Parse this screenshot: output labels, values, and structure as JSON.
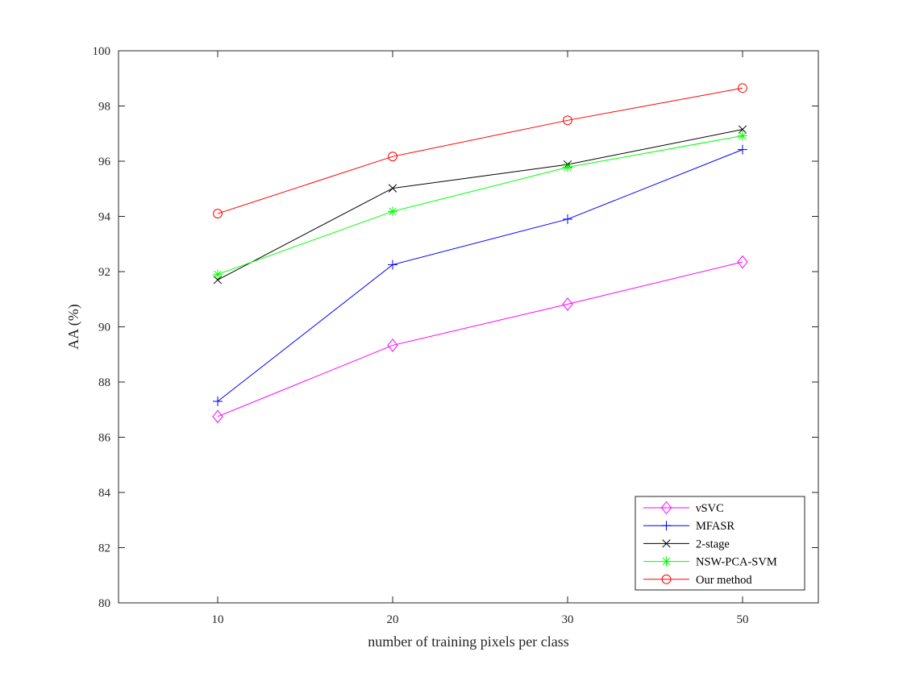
{
  "chart_data": {
    "type": "line",
    "categories": [
      "10",
      "20",
      "30",
      "50"
    ],
    "xlabel": "number of training pixels per class",
    "ylabel": "AA (%)",
    "ylim": [
      80,
      100
    ],
    "yticks": [
      80,
      82,
      84,
      86,
      88,
      90,
      92,
      94,
      96,
      98,
      100
    ],
    "grid": false,
    "legend_position": "bottom-right",
    "series": [
      {
        "name": "νSVC",
        "color": "#ff00ff",
        "marker": "diamond",
        "values": [
          86.75,
          89.33,
          90.82,
          92.35
        ]
      },
      {
        "name": "MFASR",
        "color": "#0000ff",
        "marker": "plus",
        "values": [
          87.3,
          92.25,
          93.9,
          96.42
        ]
      },
      {
        "name": "2-stage",
        "color": "#000000",
        "marker": "x",
        "values": [
          91.7,
          95.02,
          95.88,
          97.15
        ]
      },
      {
        "name": "NSW-PCA-SVM",
        "color": "#00ff00",
        "marker": "star",
        "values": [
          91.9,
          94.18,
          95.78,
          96.92
        ]
      },
      {
        "name": "Our method",
        "color": "#ff0000",
        "marker": "circle",
        "values": [
          94.1,
          96.17,
          97.48,
          98.65
        ]
      }
    ]
  }
}
